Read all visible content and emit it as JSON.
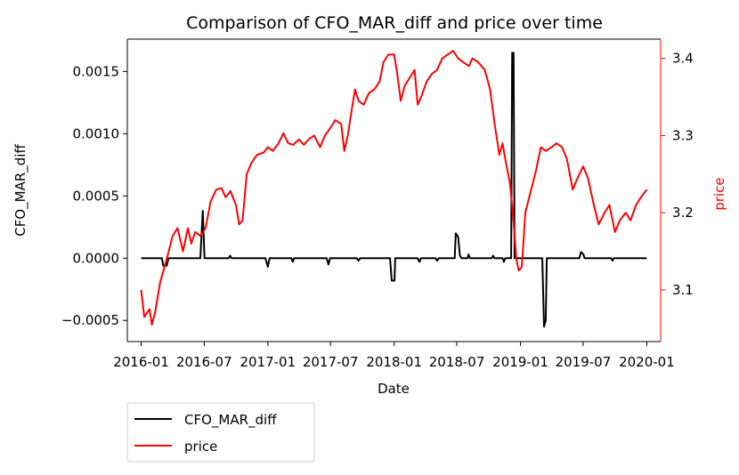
{
  "chart_data": {
    "type": "line",
    "title": "Comparison of CFO_MAR_diff and price over time",
    "xlabel": "Date",
    "ylabel_left": "CFO_MAR_diff",
    "ylabel_right": "price",
    "colors": {
      "left_axis": "#000000",
      "right_axis": "#ff0000"
    },
    "x_ticks": [
      "2016-01",
      "2016-07",
      "2017-01",
      "2017-07",
      "2018-01",
      "2018-07",
      "2019-01",
      "2019-07",
      "2020-01"
    ],
    "y_left_ticks": [
      "−0.0005",
      "0.0000",
      "0.0005",
      "0.0010",
      "0.0015"
    ],
    "y_left_tick_values": [
      -0.0005,
      0.0,
      0.0005,
      0.001,
      0.0015
    ],
    "y_right_ticks": [
      "3.1",
      "3.2",
      "3.3",
      "3.4"
    ],
    "y_right_tick_values": [
      3.1,
      3.2,
      3.3,
      3.4
    ],
    "x_range": [
      "2015-11-22",
      "2020-02-10"
    ],
    "y_left_range": [
      -0.00067,
      0.00176
    ],
    "y_right_range": [
      3.033,
      3.425
    ],
    "legend_position": "below-left",
    "grid": false,
    "series": [
      {
        "name": "CFO_MAR_diff",
        "axis": "left",
        "color": "#000000",
        "points": [
          [
            "2016-01-01",
            0.0
          ],
          [
            "2016-03-01",
            0.0
          ],
          [
            "2016-03-05",
            -6e-05
          ],
          [
            "2016-03-15",
            -6e-05
          ],
          [
            "2016-03-20",
            0.0
          ],
          [
            "2016-06-20",
            0.0
          ],
          [
            "2016-06-27",
            0.00038
          ],
          [
            "2016-07-02",
            0.0
          ],
          [
            "2016-09-10",
            0.0
          ],
          [
            "2016-09-14",
            2e-05
          ],
          [
            "2016-09-18",
            0.0
          ],
          [
            "2016-12-25",
            0.0
          ],
          [
            "2017-01-01",
            -7e-05
          ],
          [
            "2017-01-06",
            0.0
          ],
          [
            "2017-03-10",
            0.0
          ],
          [
            "2017-03-14",
            -3e-05
          ],
          [
            "2017-03-18",
            0.0
          ],
          [
            "2017-06-20",
            0.0
          ],
          [
            "2017-06-25",
            -5e-05
          ],
          [
            "2017-06-30",
            0.0
          ],
          [
            "2017-09-15",
            0.0
          ],
          [
            "2017-09-20",
            -2e-05
          ],
          [
            "2017-09-25",
            0.0
          ],
          [
            "2017-12-20",
            0.0
          ],
          [
            "2017-12-25",
            -0.00018
          ],
          [
            "2018-01-02",
            -0.00018
          ],
          [
            "2018-01-04",
            0.0
          ],
          [
            "2018-03-10",
            0.0
          ],
          [
            "2018-03-15",
            -3e-05
          ],
          [
            "2018-03-20",
            0.0
          ],
          [
            "2018-05-01",
            0.0
          ],
          [
            "2018-05-05",
            -2e-05
          ],
          [
            "2018-05-10",
            0.0
          ],
          [
            "2018-06-25",
            0.0
          ],
          [
            "2018-06-28",
            0.0002
          ],
          [
            "2018-07-05",
            0.00017
          ],
          [
            "2018-07-10",
            2e-05
          ],
          [
            "2018-07-15",
            0.0
          ],
          [
            "2018-08-01",
            0.0
          ],
          [
            "2018-08-04",
            3e-05
          ],
          [
            "2018-08-08",
            0.0
          ],
          [
            "2018-10-10",
            0.0
          ],
          [
            "2018-10-14",
            2e-05
          ],
          [
            "2018-10-18",
            0.0
          ],
          [
            "2018-11-10",
            0.0
          ],
          [
            "2018-11-14",
            -3e-05
          ],
          [
            "2018-11-18",
            0.0
          ],
          [
            "2018-12-05",
            0.0
          ],
          [
            "2018-12-08",
            0.00165
          ],
          [
            "2018-12-12",
            0.00165
          ],
          [
            "2018-12-15",
            0.0
          ],
          [
            "2019-03-05",
            0.0
          ],
          [
            "2019-03-10",
            -0.00055
          ],
          [
            "2019-03-15",
            -0.0005
          ],
          [
            "2019-03-18",
            0.0
          ],
          [
            "2019-06-20",
            0.0
          ],
          [
            "2019-06-25",
            5e-05
          ],
          [
            "2019-07-02",
            3e-05
          ],
          [
            "2019-07-05",
            0.0
          ],
          [
            "2019-09-20",
            0.0
          ],
          [
            "2019-09-24",
            -2e-05
          ],
          [
            "2019-09-28",
            0.0
          ],
          [
            "2020-01-01",
            0.0
          ]
        ]
      },
      {
        "name": "price",
        "axis": "right",
        "color": "#ff0000",
        "points": [
          [
            "2016-01-01",
            3.1
          ],
          [
            "2016-01-10",
            3.065
          ],
          [
            "2016-01-25",
            3.075
          ],
          [
            "2016-02-01",
            3.055
          ],
          [
            "2016-02-10",
            3.07
          ],
          [
            "2016-02-25",
            3.11
          ],
          [
            "2016-03-15",
            3.14
          ],
          [
            "2016-04-01",
            3.17
          ],
          [
            "2016-04-15",
            3.18
          ],
          [
            "2016-05-01",
            3.15
          ],
          [
            "2016-05-15",
            3.18
          ],
          [
            "2016-05-25",
            3.16
          ],
          [
            "2016-06-05",
            3.175
          ],
          [
            "2016-06-20",
            3.17
          ],
          [
            "2016-07-05",
            3.18
          ],
          [
            "2016-07-20",
            3.215
          ],
          [
            "2016-08-05",
            3.23
          ],
          [
            "2016-08-20",
            3.232
          ],
          [
            "2016-09-01",
            3.22
          ],
          [
            "2016-09-15",
            3.228
          ],
          [
            "2016-10-01",
            3.21
          ],
          [
            "2016-10-10",
            3.185
          ],
          [
            "2016-10-20",
            3.19
          ],
          [
            "2016-11-01",
            3.25
          ],
          [
            "2016-11-15",
            3.265
          ],
          [
            "2016-12-01",
            3.275
          ],
          [
            "2016-12-20",
            3.278
          ],
          [
            "2017-01-01",
            3.285
          ],
          [
            "2017-01-15",
            3.28
          ],
          [
            "2017-02-01",
            3.29
          ],
          [
            "2017-02-15",
            3.303
          ],
          [
            "2017-03-01",
            3.29
          ],
          [
            "2017-03-15",
            3.288
          ],
          [
            "2017-04-01",
            3.295
          ],
          [
            "2017-04-15",
            3.288
          ],
          [
            "2017-05-01",
            3.296
          ],
          [
            "2017-05-15",
            3.3
          ],
          [
            "2017-06-01",
            3.285
          ],
          [
            "2017-06-15",
            3.3
          ],
          [
            "2017-07-01",
            3.31
          ],
          [
            "2017-07-15",
            3.32
          ],
          [
            "2017-08-01",
            3.315
          ],
          [
            "2017-08-10",
            3.28
          ],
          [
            "2017-08-20",
            3.3
          ],
          [
            "2017-09-01",
            3.335
          ],
          [
            "2017-09-10",
            3.36
          ],
          [
            "2017-09-20",
            3.345
          ],
          [
            "2017-10-05",
            3.34
          ],
          [
            "2017-10-20",
            3.355
          ],
          [
            "2017-11-05",
            3.36
          ],
          [
            "2017-11-20",
            3.37
          ],
          [
            "2017-12-01",
            3.395
          ],
          [
            "2017-12-15",
            3.405
          ],
          [
            "2018-01-01",
            3.405
          ],
          [
            "2018-01-10",
            3.38
          ],
          [
            "2018-01-20",
            3.345
          ],
          [
            "2018-02-01",
            3.365
          ],
          [
            "2018-02-15",
            3.375
          ],
          [
            "2018-03-01",
            3.385
          ],
          [
            "2018-03-10",
            3.34
          ],
          [
            "2018-03-20",
            3.35
          ],
          [
            "2018-04-05",
            3.37
          ],
          [
            "2018-04-20",
            3.38
          ],
          [
            "2018-05-05",
            3.385
          ],
          [
            "2018-05-20",
            3.4
          ],
          [
            "2018-06-05",
            3.405
          ],
          [
            "2018-06-20",
            3.41
          ],
          [
            "2018-07-05",
            3.4
          ],
          [
            "2018-07-20",
            3.395
          ],
          [
            "2018-08-05",
            3.39
          ],
          [
            "2018-08-15",
            3.4
          ],
          [
            "2018-09-01",
            3.395
          ],
          [
            "2018-09-20",
            3.385
          ],
          [
            "2018-10-05",
            3.36
          ],
          [
            "2018-10-20",
            3.31
          ],
          [
            "2018-11-01",
            3.275
          ],
          [
            "2018-11-10",
            3.29
          ],
          [
            "2018-11-20",
            3.265
          ],
          [
            "2018-12-01",
            3.24
          ],
          [
            "2018-12-10",
            3.2
          ],
          [
            "2018-12-20",
            3.14
          ],
          [
            "2018-12-27",
            3.125
          ],
          [
            "2019-01-05",
            3.13
          ],
          [
            "2019-01-15",
            3.2
          ],
          [
            "2019-02-01",
            3.23
          ],
          [
            "2019-02-15",
            3.255
          ],
          [
            "2019-03-01",
            3.285
          ],
          [
            "2019-03-15",
            3.28
          ],
          [
            "2019-04-01",
            3.285
          ],
          [
            "2019-04-15",
            3.29
          ],
          [
            "2019-05-01",
            3.285
          ],
          [
            "2019-05-15",
            3.27
          ],
          [
            "2019-06-01",
            3.23
          ],
          [
            "2019-06-15",
            3.245
          ],
          [
            "2019-07-01",
            3.26
          ],
          [
            "2019-07-15",
            3.245
          ],
          [
            "2019-08-01",
            3.21
          ],
          [
            "2019-08-15",
            3.185
          ],
          [
            "2019-09-01",
            3.2
          ],
          [
            "2019-09-15",
            3.21
          ],
          [
            "2019-10-01",
            3.175
          ],
          [
            "2019-10-15",
            3.19
          ],
          [
            "2019-11-01",
            3.2
          ],
          [
            "2019-11-15",
            3.19
          ],
          [
            "2019-12-01",
            3.21
          ],
          [
            "2019-12-15",
            3.22
          ],
          [
            "2020-01-01",
            3.23
          ]
        ]
      }
    ]
  }
}
